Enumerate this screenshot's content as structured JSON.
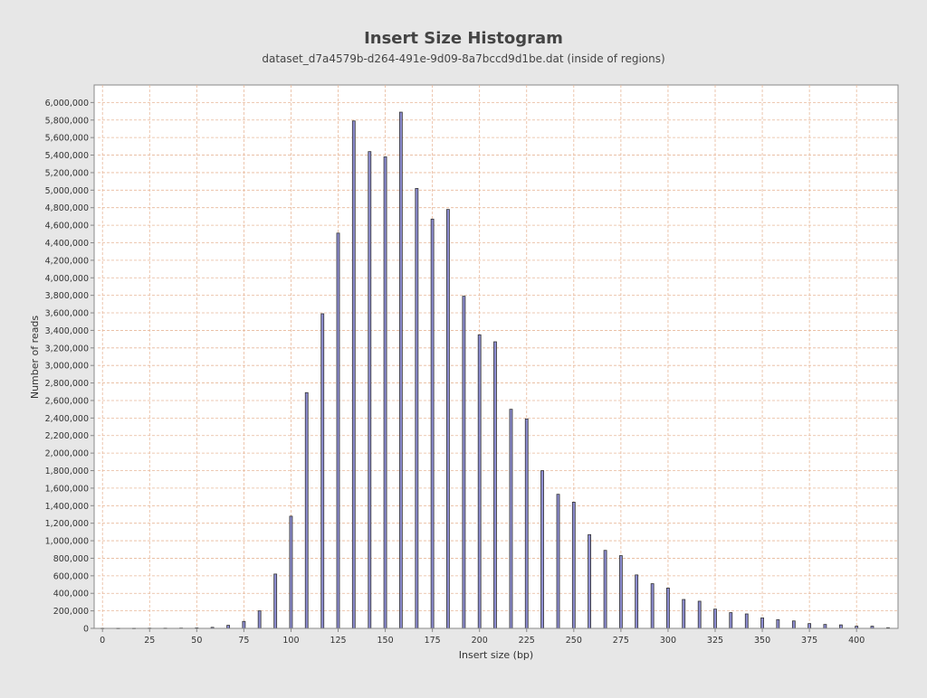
{
  "chart_data": {
    "type": "bar",
    "title": "Insert Size Histogram",
    "subtitle": "dataset_d7a4579b-d264-491e-9d09-8a7bccd9d1be.dat (inside of regions)",
    "xlabel": "Insert size (bp)",
    "ylabel": "Number of reads",
    "xlim": [
      -2.5,
      422
    ],
    "ylim": [
      0,
      6200000
    ],
    "x_ticks": [
      0,
      25,
      50,
      75,
      100,
      125,
      150,
      175,
      200,
      225,
      250,
      275,
      300,
      325,
      350,
      375,
      400
    ],
    "y_ticks": [
      0,
      200000,
      400000,
      600000,
      800000,
      1000000,
      1200000,
      1400000,
      1600000,
      1800000,
      2000000,
      2200000,
      2400000,
      2600000,
      2800000,
      3000000,
      3200000,
      3400000,
      3600000,
      3800000,
      4000000,
      4200000,
      4400000,
      4600000,
      4800000,
      5000000,
      5200000,
      5400000,
      5600000,
      5800000,
      6000000
    ],
    "x_tick_labels": [
      "0",
      "25",
      "50",
      "75",
      "100",
      "125",
      "150",
      "175",
      "200",
      "225",
      "250",
      "275",
      "300",
      "325",
      "350",
      "375",
      "400"
    ],
    "y_tick_labels": [
      "0",
      "200,000",
      "400,000",
      "600,000",
      "800,000",
      "1,000,000",
      "1,200,000",
      "1,400,000",
      "1,600,000",
      "1,800,000",
      "2,000,000",
      "2,200,000",
      "2,400,000",
      "2,600,000",
      "2,800,000",
      "3,000,000",
      "3,200,000",
      "3,400,000",
      "3,600,000",
      "3,800,000",
      "4,000,000",
      "4,200,000",
      "4,400,000",
      "4,600,000",
      "4,800,000",
      "5,000,000",
      "5,200,000",
      "5,400,000",
      "5,600,000",
      "5,800,000",
      "6,000,000"
    ],
    "grid": true,
    "legend": "none",
    "colors": {
      "bar_fill": "#8c8cd0",
      "bar_edge": "#333333",
      "grid": "#e8b89a",
      "plot_bg": "#ffffff",
      "page_bg": "#e7e7e7",
      "axis": "#888888",
      "text": "#333333",
      "title": "#444444"
    },
    "series": [
      {
        "x": [
          0,
          8.3,
          16.7,
          25,
          33.3,
          41.7,
          50,
          58.3,
          66.7,
          75,
          83.3,
          91.7,
          100,
          108.3,
          116.7,
          125,
          133.3,
          141.7,
          150,
          158.3,
          166.7,
          175,
          183.3,
          191.7,
          200,
          208.3,
          216.7,
          225,
          233.3,
          241.7,
          250,
          258.3,
          266.7,
          275,
          283.3,
          291.7,
          300,
          308.3,
          316.7,
          325,
          333.3,
          341.7,
          350,
          358.3,
          366.7,
          375,
          383.3,
          391.7,
          400,
          408.3,
          416.7
        ],
        "values": [
          2000,
          2000,
          2000,
          3000,
          3000,
          4000,
          6000,
          12000,
          35000,
          80000,
          200000,
          620000,
          1280000,
          2690000,
          3590000,
          4510000,
          5790000,
          5440000,
          5380000,
          5890000,
          5020000,
          4670000,
          4780000,
          3790000,
          3350000,
          3270000,
          2500000,
          2390000,
          1800000,
          1530000,
          1440000,
          1070000,
          890000,
          830000,
          610000,
          510000,
          460000,
          330000,
          310000,
          220000,
          180000,
          165000,
          120000,
          100000,
          85000,
          55000,
          45000,
          40000,
          25000,
          25000,
          8000
        ]
      }
    ]
  }
}
